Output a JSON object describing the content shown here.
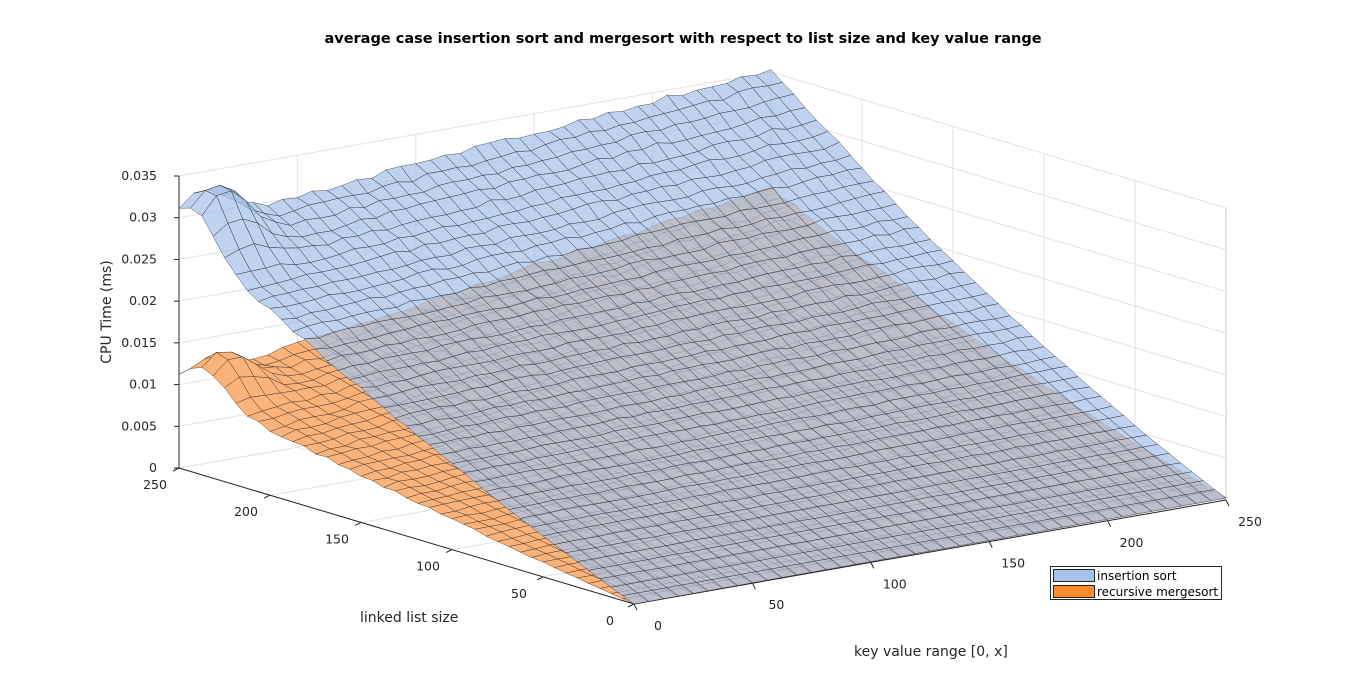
{
  "chart_data": {
    "type": "surface",
    "title": "average case insertion sort and mergesort with respect to list size and key value range",
    "xlabel": "key value range [0, x]",
    "ylabel": "linked list size",
    "zlabel": "CPU Time (ms)",
    "xlim": [
      0,
      250
    ],
    "ylim": [
      0,
      250
    ],
    "zlim": [
      0,
      0.035
    ],
    "x_ticks": [
      0,
      50,
      100,
      150,
      200,
      250
    ],
    "y_ticks": [
      0,
      50,
      100,
      150,
      200,
      250
    ],
    "z_ticks": [
      0,
      0.005,
      0.01,
      0.015,
      0.02,
      0.025,
      0.03,
      0.035
    ],
    "z_tick_labels": [
      "0",
      "0.005",
      "0.01",
      "0.015",
      "0.02",
      "0.025",
      "0.03",
      "0.035"
    ],
    "grid": true,
    "legend_position": "bottom-right",
    "series": [
      {
        "name": "insertion sort",
        "color": "#a6c2ea",
        "corner_values": {
          "x0_y0": 0.0,
          "x250_y0": 0.0003,
          "x0_y250": 0.0288,
          "x250_y250": 0.0353
        },
        "peak_near": {
          "x": 10,
          "y": 240,
          "z": 0.034
        }
      },
      {
        "name": "recursive mergesort",
        "color": "#fcb37a",
        "corner_values": {
          "x0_y0": 0.0,
          "x250_y0": 0.0004,
          "x0_y250": 0.0102,
          "x250_y250": 0.0212
        },
        "peak_near": {
          "x": 8,
          "y": 235,
          "z": 0.0145
        }
      }
    ],
    "legend": {
      "insertion_label": "insertion sort",
      "mergesort_label": "recursive mergesort",
      "insertion_color": "#a6c2ea",
      "mergesort_color": "#ff8c2a"
    }
  }
}
